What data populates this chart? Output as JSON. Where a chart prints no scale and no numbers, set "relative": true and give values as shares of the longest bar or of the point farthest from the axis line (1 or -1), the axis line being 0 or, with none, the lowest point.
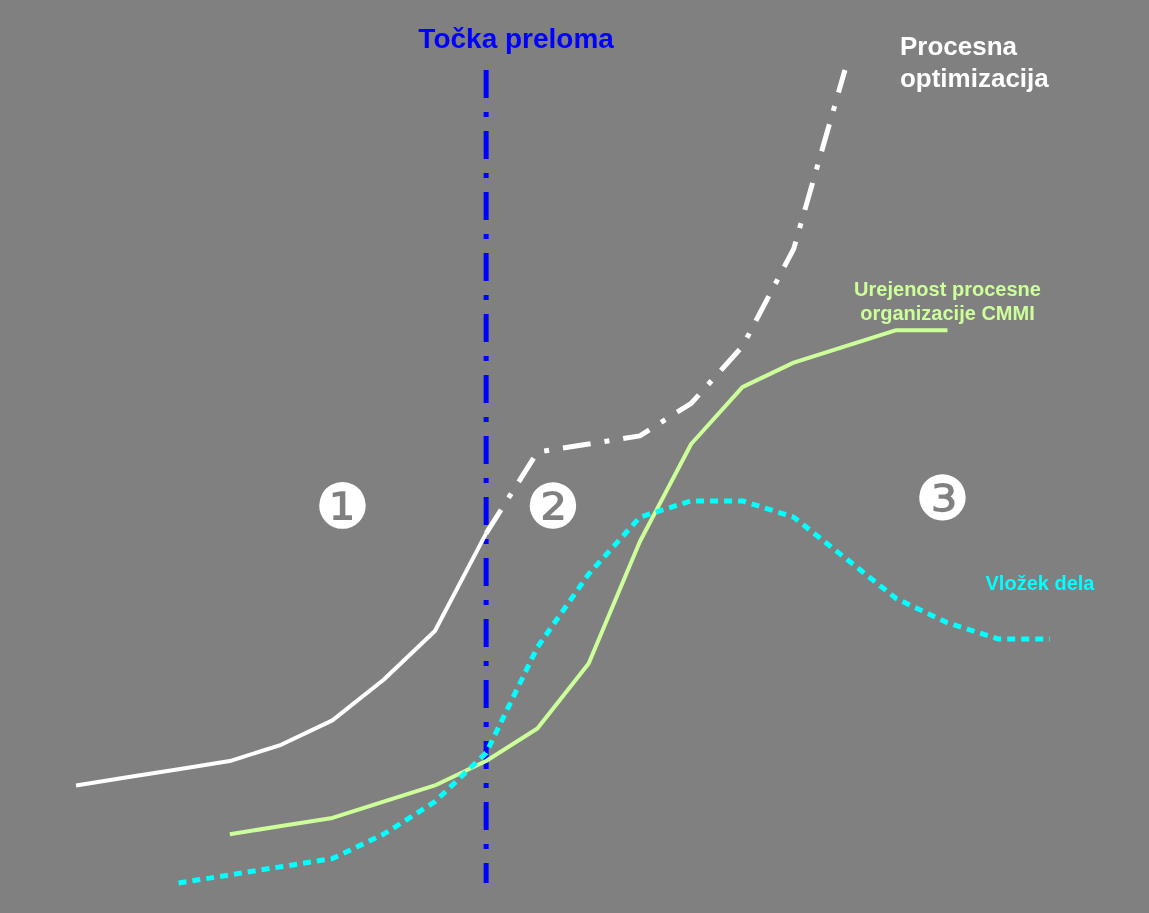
{
  "chart_data": {
    "type": "line",
    "relative": true,
    "tick_labels": false,
    "legend": false,
    "categories": [
      null,
      null,
      null,
      null,
      null,
      null,
      null,
      null,
      null,
      null,
      null,
      null,
      null,
      null,
      null,
      null,
      null,
      null,
      null,
      null
    ],
    "series": [
      {
        "color": "#ffffff",
        "line_style": "solid",
        "values": [
          0.12,
          0.13,
          0.14,
          0.15,
          0.17,
          0.2,
          0.25,
          0.31,
          0.43,
          null,
          null,
          null,
          null,
          null,
          null,
          null,
          null,
          null,
          null,
          null
        ]
      },
      {
        "name": "Procesna optimizacija",
        "color": "#ffffff",
        "line_style": "dashed",
        "values": [
          null,
          null,
          null,
          null,
          null,
          null,
          null,
          null,
          0.43,
          0.53,
          0.54,
          0.55,
          0.59,
          0.66,
          0.78,
          1,
          null,
          null,
          null,
          null
        ]
      },
      {
        "name": "Urejenost procesne organizacije CMMI",
        "color": "#ccff99",
        "line_style": "solid",
        "values": [
          null,
          null,
          null,
          0.06,
          0.07,
          0.08,
          0.1,
          0.12,
          0.15,
          0.19,
          0.27,
          0.42,
          0.54,
          0.61,
          0.64,
          0.66,
          0.68,
          0.68,
          null,
          null
        ]
      },
      {
        "name": "Vložek dela",
        "color": "#00ffff",
        "line_style": "dotted",
        "values": [
          null,
          null,
          0,
          0.01,
          0.02,
          0.03,
          0.06,
          0.1,
          0.16,
          0.29,
          0.38,
          0.45,
          0.47,
          0.47,
          0.45,
          0.4,
          0.35,
          0.32,
          0.3,
          0.3
        ]
      }
    ],
    "annotations": [
      "❶",
      "❷",
      "❸",
      "Točka preloma"
    ]
  }
}
